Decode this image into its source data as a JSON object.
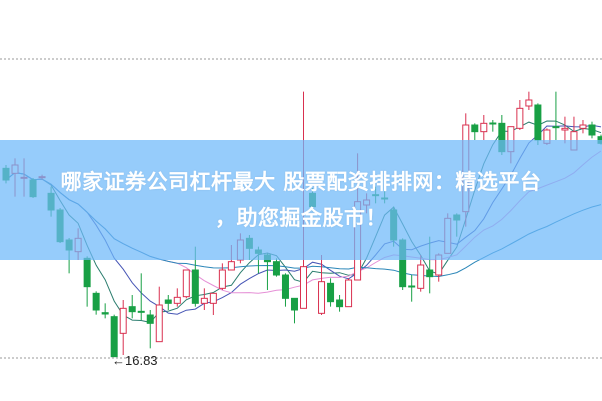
{
  "banner": {
    "line1": "哪家证券公司杠杆最大 股票配资排排网：精选平台",
    "line2": "，助您掘金股市！"
  },
  "chart_data": {
    "type": "candlestick",
    "title": "",
    "xlabel": "",
    "ylabel": "",
    "ylim": [
      16.8,
      25.77
    ],
    "grid": "dotted horizontal lines at top and bottom",
    "annotation": {
      "text": "16.83",
      "arrow": "←",
      "candle_index": 12
    },
    "colors": {
      "up": "#d9304f",
      "down": "#18a045",
      "ma_short": "#2b7d6e",
      "ma_mid": "#4655b5",
      "ma_long": "#e58fd6",
      "ma_longest": "#2a86b8",
      "banner": "#6eb9fa"
    },
    "moving_averages": [
      5,
      10,
      20,
      40
    ],
    "candles": [
      [
        22.49,
        22.59,
        22.04,
        22.14
      ],
      [
        22.34,
        22.79,
        21.64,
        22.59
      ],
      [
        22.2,
        22.79,
        21.64,
        22.22
      ],
      [
        22.14,
        22.2,
        21.6,
        21.64
      ],
      [
        22.22,
        22.3,
        22.15,
        22.24
      ],
      [
        21.74,
        21.94,
        21.04,
        21.24
      ],
      [
        21.24,
        21.3,
        20.25,
        20.29
      ],
      [
        20.34,
        20.4,
        19.34,
        20.04
      ],
      [
        19.99,
        20.69,
        19.74,
        20.39
      ],
      [
        19.79,
        19.85,
        18.34,
        18.94
      ],
      [
        18.74,
        18.8,
        18.1,
        18.24
      ],
      [
        18.16,
        18.44,
        17.99,
        18.12
      ],
      [
        18.04,
        18.1,
        16.83,
        16.84
      ],
      [
        17.54,
        18.54,
        16.89,
        18.29
      ],
      [
        18.34,
        18.69,
        17.99,
        18.19
      ],
      [
        18.2,
        19.34,
        17.94,
        18.18
      ],
      [
        18.09,
        18.24,
        17.09,
        17.84
      ],
      [
        17.29,
        18.94,
        17.29,
        18.39
      ],
      [
        18.54,
        18.69,
        18.24,
        18.44
      ],
      [
        18.44,
        18.89,
        18.34,
        18.62
      ],
      [
        18.64,
        19.44,
        18.59,
        19.44
      ],
      [
        19.44,
        20.14,
        18.34,
        18.44
      ],
      [
        18.44,
        18.89,
        18.24,
        18.59
      ],
      [
        18.44,
        18.74,
        18.09,
        18.74
      ],
      [
        18.89,
        19.64,
        18.84,
        19.44
      ],
      [
        19.44,
        20.19,
        19.44,
        19.69
      ],
      [
        19.74,
        20.54,
        19.64,
        20.34
      ],
      [
        20.39,
        20.49,
        19.74,
        20.09
      ],
      [
        20.04,
        20.14,
        19.34,
        19.94
      ],
      [
        19.89,
        19.94,
        18.84,
        19.69
      ],
      [
        19.69,
        19.79,
        19.24,
        19.29
      ],
      [
        19.29,
        19.34,
        18.34,
        18.59
      ],
      [
        18.59,
        18.59,
        17.84,
        18.24
      ],
      [
        18.29,
        24.79,
        18.29,
        19.54
      ],
      [
        21.74,
        21.9,
        21.2,
        21.34
      ],
      [
        18.14,
        19.89,
        18.09,
        19.09
      ],
      [
        19.04,
        19.19,
        18.34,
        18.49
      ],
      [
        18.54,
        18.69,
        18.19,
        18.34
      ],
      [
        18.34,
        19.19,
        18.34,
        19.14
      ],
      [
        19.14,
        22.94,
        19.14,
        21.49
      ],
      [
        21.39,
        21.74,
        21.14,
        21.54
      ],
      [
        21.7,
        21.94,
        21.44,
        21.68
      ],
      [
        21.6,
        21.89,
        21.44,
        21.58
      ],
      [
        21.24,
        21.34,
        20.14,
        20.34
      ],
      [
        20.34,
        20.39,
        18.84,
        18.94
      ],
      [
        18.96,
        19.29,
        18.49,
        18.94
      ],
      [
        18.89,
        19.89,
        18.79,
        19.59
      ],
      [
        19.44,
        20.44,
        18.74,
        19.24
      ],
      [
        19.29,
        19.94,
        19.09,
        19.89
      ],
      [
        19.94,
        21.14,
        19.94,
        20.99
      ],
      [
        21.09,
        21.14,
        20.44,
        20.94
      ],
      [
        21.19,
        24.14,
        20.74,
        23.79
      ],
      [
        23.79,
        23.84,
        23.34,
        23.59
      ],
      [
        23.59,
        24.09,
        23.34,
        23.84
      ],
      [
        23.85,
        23.94,
        23.59,
        23.83
      ],
      [
        23.84,
        24.09,
        22.89,
        22.99
      ],
      [
        22.99,
        23.74,
        22.64,
        23.74
      ],
      [
        23.69,
        24.54,
        23.64,
        24.29
      ],
      [
        24.36,
        24.79,
        24.24,
        24.54
      ],
      [
        24.39,
        24.44,
        23.19,
        23.34
      ],
      [
        23.24,
        23.69,
        23.19,
        23.64
      ],
      [
        23.74,
        24.79,
        23.34,
        23.72
      ],
      [
        23.64,
        24.04,
        23.24,
        23.69
      ],
      [
        23.04,
        24.04,
        23.04,
        23.59
      ],
      [
        23.69,
        23.94,
        23.54,
        23.79
      ],
      [
        23.79,
        23.89,
        23.39,
        23.49
      ],
      [
        23.44,
        23.5,
        23.2,
        23.24
      ]
    ]
  }
}
